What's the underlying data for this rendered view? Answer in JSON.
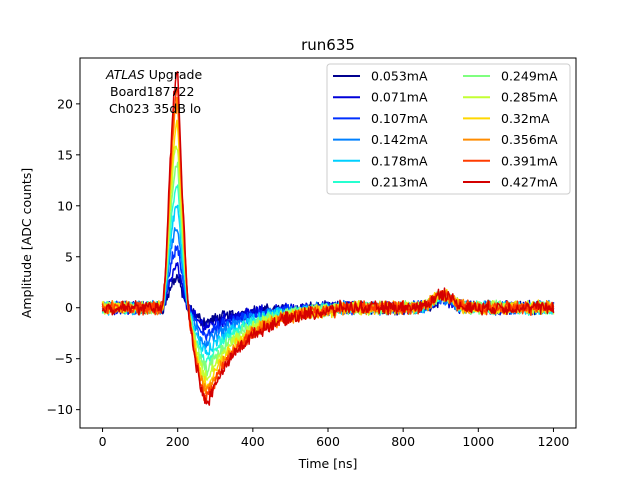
{
  "chart_data": {
    "type": "line",
    "title": "run635",
    "xlabel": "Time [ns]",
    "ylabel": "Amplitude [ADC counts]",
    "xlim": [
      -60,
      1260
    ],
    "ylim": [
      -11.8,
      24.5
    ],
    "xticks": [
      0,
      200,
      400,
      600,
      800,
      1000,
      1200
    ],
    "yticks": [
      -10,
      -5,
      0,
      5,
      10,
      15,
      20
    ],
    "ytick_labels": [
      "−10",
      "−5",
      "0",
      "5",
      "10",
      "15",
      "20"
    ],
    "grid": false,
    "legend_position": "top-right",
    "legend_columns": 2,
    "annotation": {
      "experiment": "ATLAS",
      "experiment_suffix": " Upgrade",
      "board": "Board187722",
      "channel": "Ch023 35dB lo"
    },
    "series": [
      {
        "name": "0.053mA",
        "color": "#00008f",
        "peak": 3.0,
        "undershoot": -1.4
      },
      {
        "name": "0.071mA",
        "color": "#0000d9",
        "peak": 4.0,
        "undershoot": -1.8
      },
      {
        "name": "0.107mA",
        "color": "#0030ff",
        "peak": 6.0,
        "undershoot": -2.6
      },
      {
        "name": "0.142mA",
        "color": "#0080ff",
        "peak": 8.0,
        "undershoot": -3.4
      },
      {
        "name": "0.178mA",
        "color": "#00d0ff",
        "peak": 10.0,
        "undershoot": -4.3
      },
      {
        "name": "0.213mA",
        "color": "#26ffd0",
        "peak": 12.0,
        "undershoot": -5.1
      },
      {
        "name": "0.249mA",
        "color": "#7fff7f",
        "peak": 14.0,
        "undershoot": -6.0
      },
      {
        "name": "0.285mA",
        "color": "#c4ff33",
        "peak": 16.0,
        "undershoot": -6.8
      },
      {
        "name": "0.32mA",
        "color": "#ffd700",
        "peak": 18.0,
        "undershoot": -7.5
      },
      {
        "name": "0.356mA",
        "color": "#ff8c00",
        "peak": 20.0,
        "undershoot": -8.2
      },
      {
        "name": "0.391mA",
        "color": "#ff3c00",
        "peak": 21.5,
        "undershoot": -8.8
      },
      {
        "name": "0.427mA",
        "color": "#d40000",
        "peak": 23.0,
        "undershoot": -9.3
      }
    ]
  }
}
